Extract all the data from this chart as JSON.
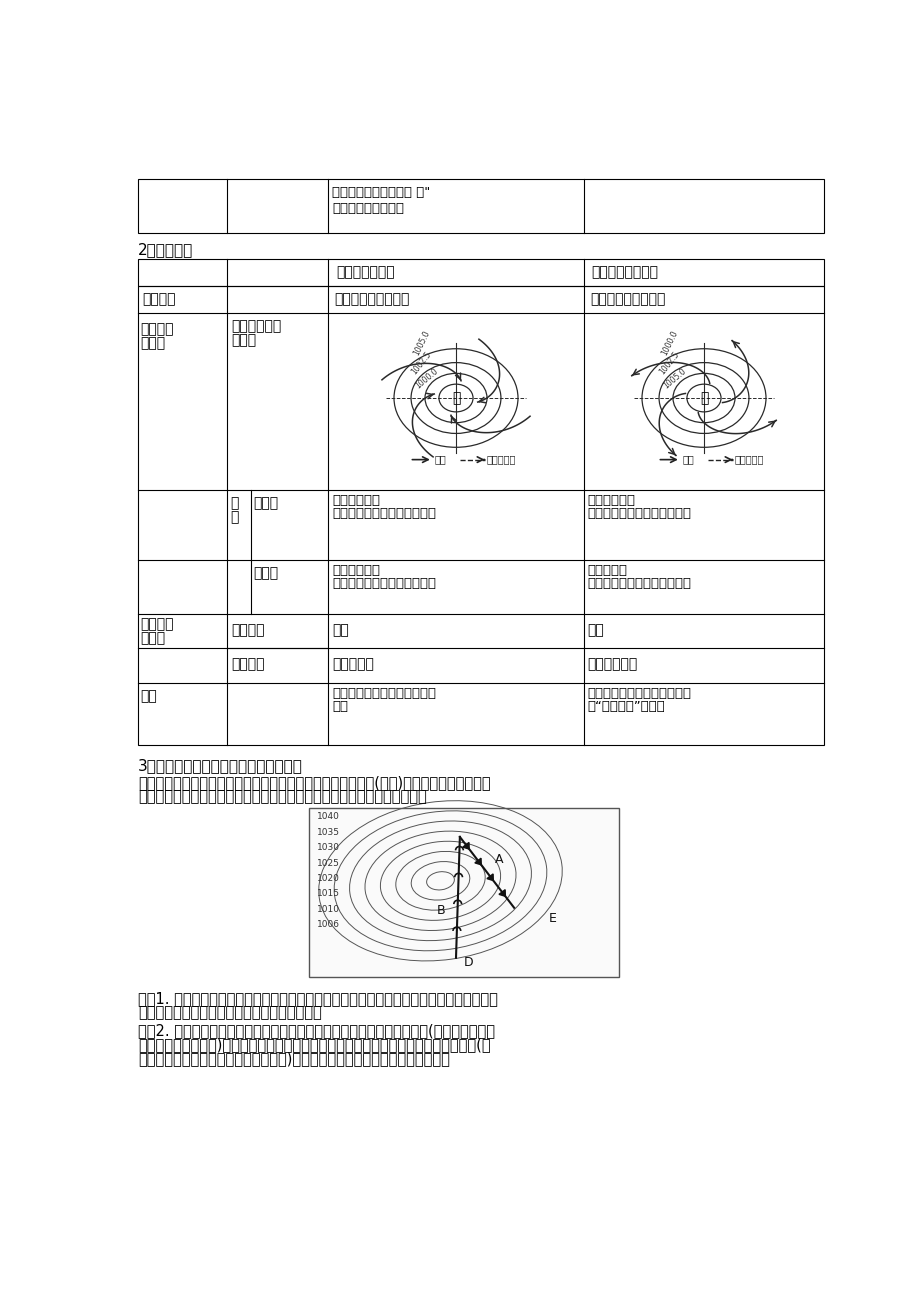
{
  "bg_color": "#ffffff",
  "text_color": "#000000",
  "top_table_text1": "流域和东北地区，夏季 晴\"",
  "top_table_text2": "多出现在黄河流域。",
  "section2_title": "2、气压系统",
  "header_col2": "气旋（低气压）",
  "header_col3": "反气旋（高气压）",
  "row0_cy": "气压中心低，四周高",
  "row0_an": "气压中心高，四周低",
  "row0_label": "气压分布",
  "merge1_label1": "水平气流",
  "merge1_label2": "与风向",
  "row1_sub1": "气流形式（北",
  "row1_sub2": "半球）",
  "row2_wind1": "风",
  "row2_wind2": "向",
  "row2_hemi": "北半球",
  "row3_hemi": "南半球",
  "row2_cy1": "逆时针辐合：",
  "row2_cy2": "东部：偏南风；西部：偏北风",
  "row2_an1": "顺时针辐散：",
  "row2_an2": "东部：偏北风；西部：偏南风",
  "row3_cy1": "顺时针辐合：",
  "row3_cy2": "东部：偏北风；西部：偏南风",
  "row3_an1": "逆时针辐散",
  "row3_an2": "东部：偏南风；西部：偏北风",
  "merge2_label1": "垂直气流",
  "merge2_label2": "与天气",
  "row4_sub": "气流运动",
  "row5_sub": "天气状况",
  "row4_cy": "上升",
  "row4_an": "下沉",
  "row5_cy": "多阴雨天气",
  "row5_an": "晴朗干燥天气",
  "row6_label": "实例",
  "row6_cy1": "夏秋季节影响我国东南沿海的",
  "row6_cy2": "台风",
  "row6_an1": "夏季长江流域的伏旱；我国北",
  "row6_an2": "方“秋高气爽”的天气",
  "section3_title": "3、锋面气旋和近地面天气系统图的识读",
  "p1_line1": "　　锋与气旋活动联系在一起，就形成锋面气旋，它主要分布(活动)在中高纬地区。在近地",
  "p1_line2": "面天气系统中，与我国关系密切的就是锋面气旋系统，它的识读方法如下：",
  "p2_line1": "　　1. 无论是气旋还是反气旋，都是在水平气压梯度力、地转偏向力和摩擦力三力的共同作",
  "p2_line2": "用下，风从高气压区斜穿等压线吹向低气压区。",
  "p3_line1": "　　2. 锋面只形成于气旋中，因为气旋的水平气流是向中心辐合，在槽线(低气压等压线向",
  "p3_line2": "外弯曲最大处的连线)两侧冷暖气流易相遇形成锋面。而反气旋的气流呈辐散状，在脊线(高",
  "p3_line3": "气压等压线向外弯曲最大处地方的连线)两侧气流不可能相遇，故不能形成锋面。",
  "cyclone_label": "低",
  "anticyclone_label": "高",
  "legend_wind": "风向",
  "legend_pressure": "气压梯度力",
  "contour_vals": [
    "1040",
    "1035",
    "1030",
    "1025",
    "1020",
    "1015",
    "1010",
    "1006"
  ],
  "map_labels": [
    "A",
    "B",
    "E",
    "D"
  ]
}
